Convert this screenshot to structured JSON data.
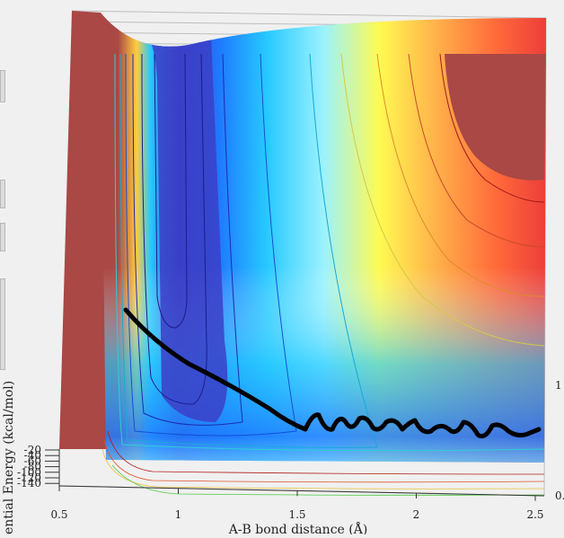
{
  "chart_data": {
    "type": "surface-contour",
    "xlabel": "A-B bond distance (Å)",
    "zlabel": "Potential Energy (kcal/mol)",
    "zlabel_visible": "ential Energy (kcal/mol)",
    "x_ticks": [
      "0.5",
      "1",
      "1.5",
      "2",
      "2.5"
    ],
    "x_tick_values": [
      0.5,
      1,
      1.5,
      2,
      2.5
    ],
    "xlim": [
      0.5,
      2.5
    ],
    "z_ticks": [
      "-20",
      "-40",
      "-60",
      "-80",
      "-100",
      "-120",
      "-140"
    ],
    "y_ticks_right": [
      "1",
      "0."
    ],
    "colormap": [
      "#3b3fc8",
      "#1f7cff",
      "#27c9ff",
      "#9bf2ff",
      "#fffa52",
      "#ffb24a",
      "#ff6a3a",
      "#e8343a",
      "#a94845"
    ],
    "trajectory": {
      "color": "#000000",
      "x": [
        0.77,
        0.82,
        0.88,
        0.95,
        1.02,
        1.1,
        1.18,
        1.26,
        1.34,
        1.41,
        1.47,
        1.52,
        1.55,
        1.58,
        1.61,
        1.64,
        1.68,
        1.72,
        1.76,
        1.8,
        1.84,
        1.88,
        1.92,
        1.96,
        2.0,
        2.04,
        2.08,
        2.12,
        2.16,
        2.2,
        2.24,
        2.28,
        2.32,
        2.36,
        2.4,
        2.44,
        2.48,
        2.5
      ],
      "y_screen_hint": "decreasing then oscillating"
    }
  }
}
